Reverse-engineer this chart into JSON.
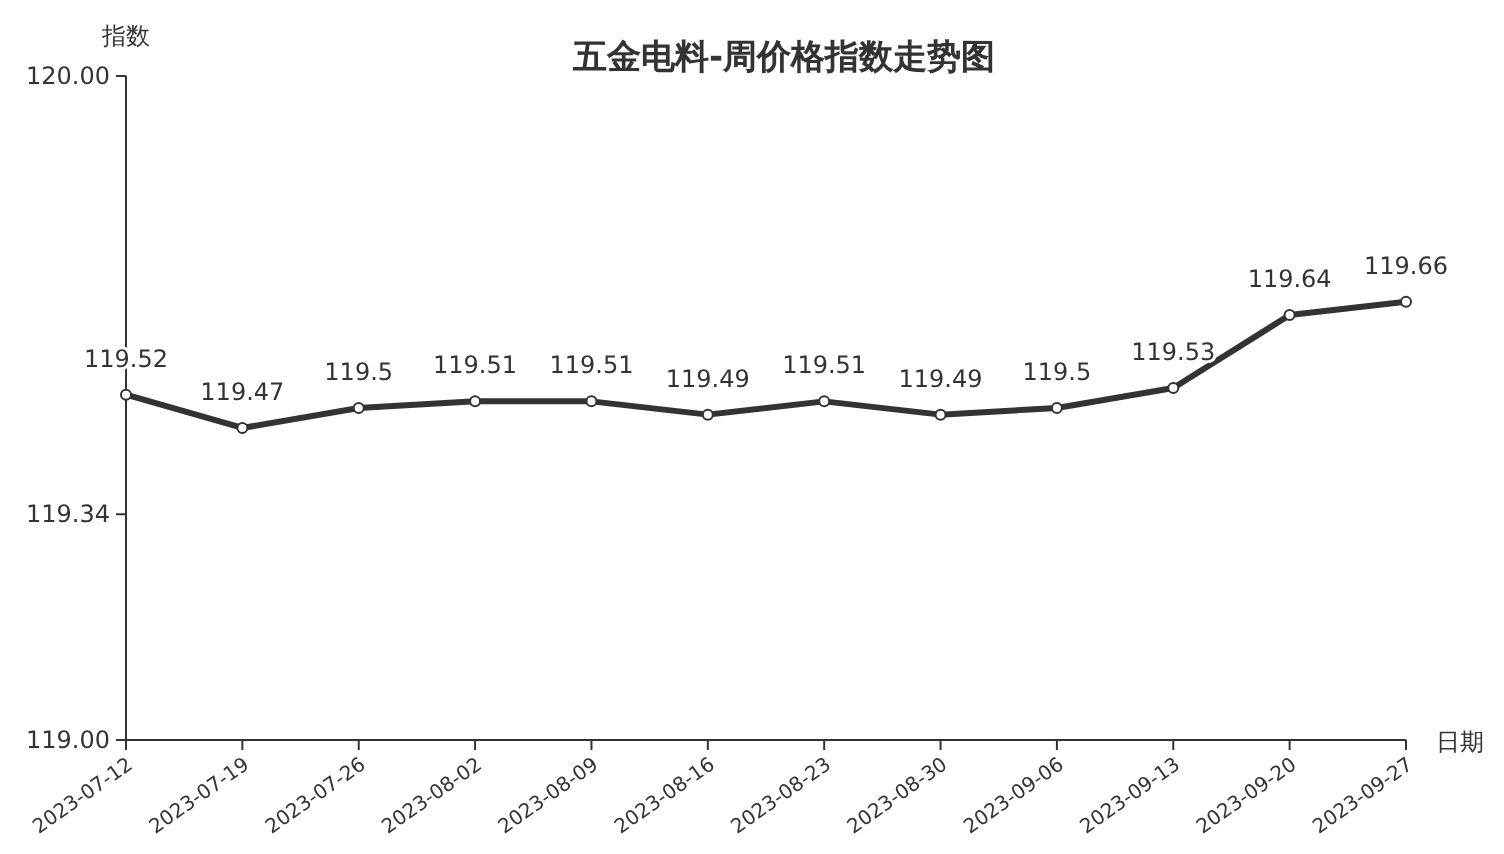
{
  "chart_data": {
    "type": "line",
    "title": "五金电料-周价格指数走势图",
    "xlabel": "日期",
    "ylabel": "指数",
    "categories": [
      "2023-07-12",
      "2023-07-19",
      "2023-07-26",
      "2023-08-02",
      "2023-08-09",
      "2023-08-16",
      "2023-08-23",
      "2023-08-30",
      "2023-09-06",
      "2023-09-13",
      "2023-09-20",
      "2023-09-27"
    ],
    "values": [
      119.52,
      119.47,
      119.5,
      119.51,
      119.51,
      119.49,
      119.51,
      119.49,
      119.5,
      119.53,
      119.64,
      119.66
    ],
    "color": "#333333",
    "marker": "circle",
    "data_labels": true,
    "ylim": [
      119,
      120
    ],
    "yticks": [
      {
        "value": 119,
        "label": "119.00"
      },
      119.34,
      {
        "value": 120,
        "label": "120.00"
      }
    ]
  }
}
